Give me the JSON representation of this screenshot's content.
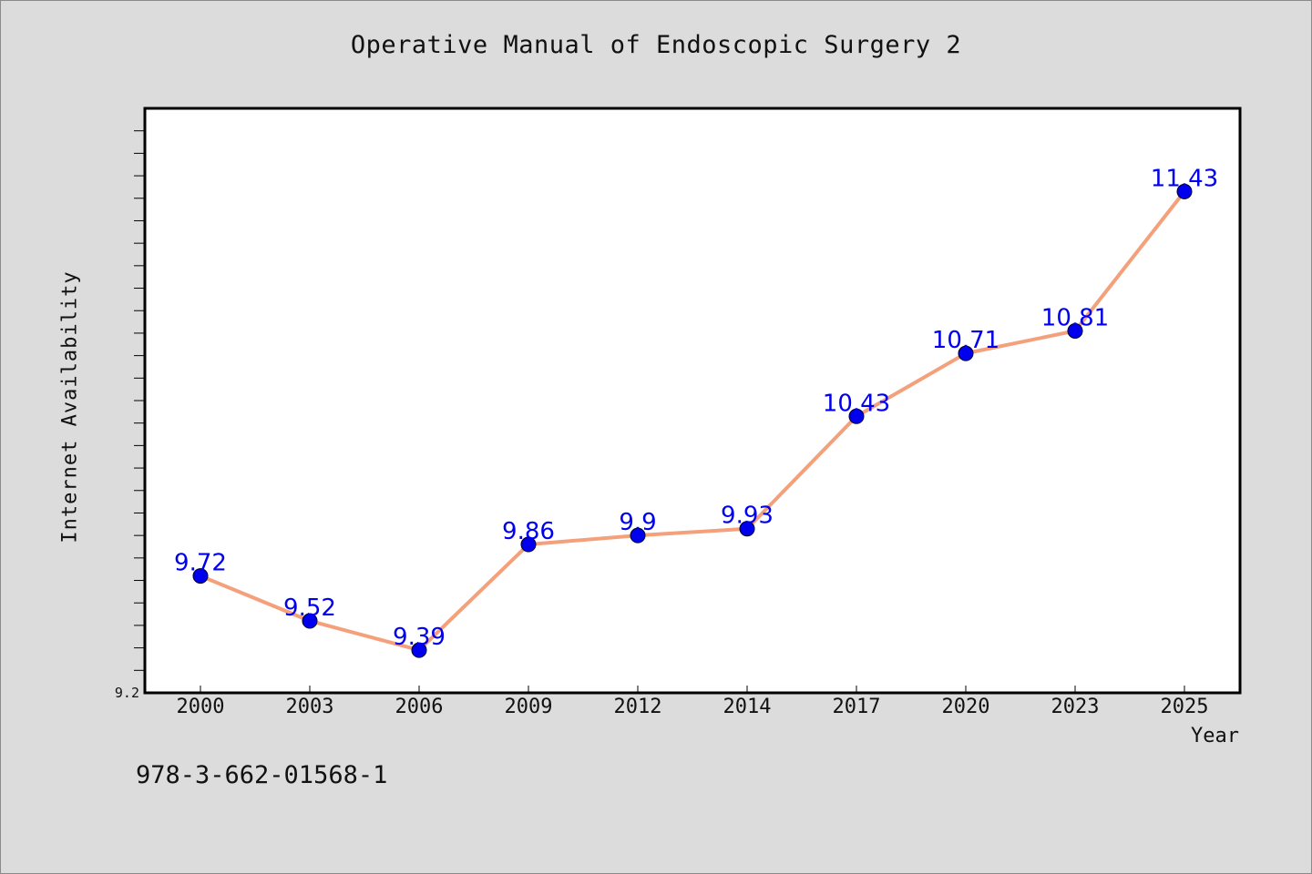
{
  "chart_data": {
    "type": "line",
    "title": "Operative Manual of Endoscopic Surgery 2",
    "xlabel": "Year",
    "ylabel": "Internet Availability",
    "categories": [
      "2000",
      "2003",
      "2006",
      "2009",
      "2012",
      "2014",
      "2017",
      "2020",
      "2023",
      "2025"
    ],
    "values": [
      9.72,
      9.52,
      9.39,
      9.86,
      9.9,
      9.93,
      10.43,
      10.71,
      10.81,
      11.43
    ],
    "data_labels": [
      "9.72",
      "9.52",
      "9.39",
      "9.86",
      "9.9",
      "9.93",
      "10.43",
      "10.71",
      "10.81",
      "11.43"
    ],
    "ylim": [
      9.2,
      11.8
    ],
    "y_tick_labels": [
      "9.2"
    ],
    "grid": false,
    "line_color": "#f4a07a",
    "marker_color": "#0000ee",
    "label_color": "#0000ee"
  },
  "footer": {
    "isbn": "978-3-662-01568-1"
  }
}
